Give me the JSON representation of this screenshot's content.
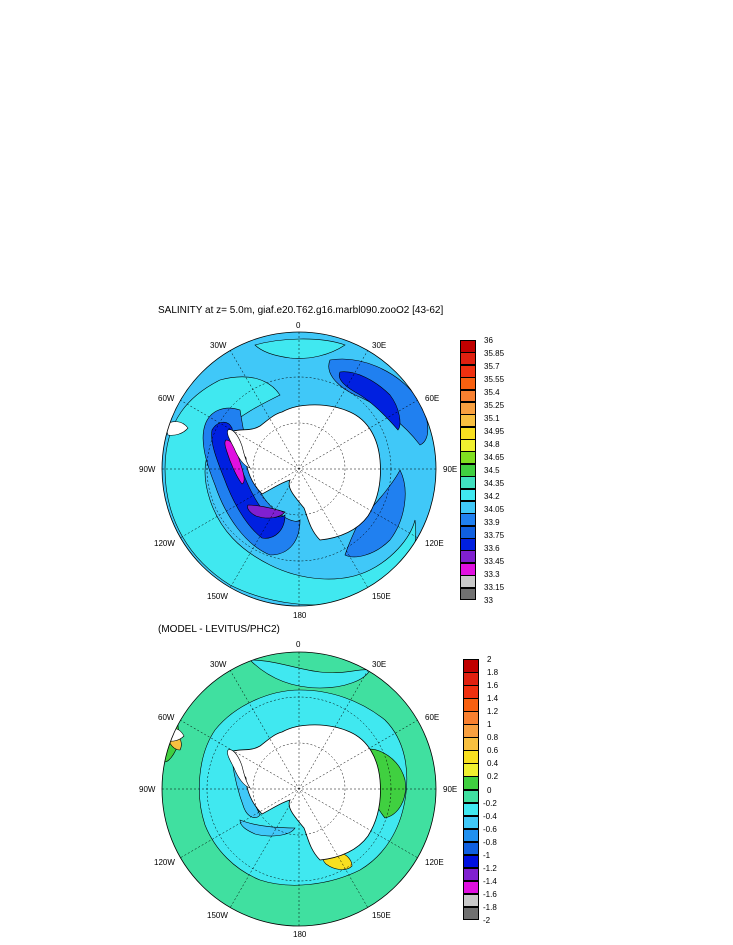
{
  "panels": [
    {
      "title": "SALINITY at z=   5.0m, giaf.e20.T62.g16.marbl090.zooO2 [43-62]",
      "lon_labels": {
        "top": "0",
        "tl": "30W",
        "tr": "30E",
        "ml": "60W",
        "mr": "60E",
        "l": "90W",
        "r": "90E",
        "bl": "120W",
        "br": "120E",
        "bbl": "150W",
        "bbr": "150E",
        "bottom": "180"
      },
      "colorbar": {
        "labels": [
          "36",
          "35.85",
          "35.7",
          "35.55",
          "35.4",
          "35.25",
          "35.1",
          "34.95",
          "34.8",
          "34.65",
          "34.5",
          "34.35",
          "34.2",
          "34.05",
          "33.9",
          "33.75",
          "33.6",
          "33.45",
          "33.3",
          "33.15",
          "33"
        ],
        "colors": [
          "#c00000",
          "#e02010",
          "#f03010",
          "#f86010",
          "#f88030",
          "#f8a040",
          "#f8c040",
          "#f8e020",
          "#f0f030",
          "#80e020",
          "#40d040",
          "#40e0c0",
          "#40e8f0",
          "#40c8f8",
          "#2080f0",
          "#1060e0",
          "#0020e0",
          "#8020d0",
          "#e010e0",
          "#c8c8c8",
          "#707070"
        ]
      }
    },
    {
      "title": "(MODEL - LEVITUS/PHC2)",
      "lon_labels": {
        "top": "0",
        "tl": "30W",
        "tr": "30E",
        "ml": "60W",
        "mr": "60E",
        "l": "90W",
        "r": "90E",
        "bl": "120W",
        "br": "120E",
        "bbl": "150W",
        "bbr": "150E",
        "bottom": "180"
      },
      "colorbar": {
        "labels": [
          "2",
          "1.8",
          "1.6",
          "1.4",
          "1.2",
          "1",
          "0.8",
          "0.6",
          "0.4",
          "0.2",
          "0",
          "-0.2",
          "-0.4",
          "-0.6",
          "-0.8",
          "-1",
          "-1.2",
          "-1.4",
          "-1.6",
          "-1.8",
          "-2"
        ],
        "colors": [
          "#c00000",
          "#e02010",
          "#f03010",
          "#f86010",
          "#f88030",
          "#f8a040",
          "#f8c040",
          "#f8e020",
          "#f0f030",
          "#40d040",
          "#40e0a0",
          "#40e8f0",
          "#40c8f8",
          "#2090f0",
          "#1060e0",
          "#0010e0",
          "#8020d0",
          "#e010e0",
          "#c8c8c8",
          "#707070"
        ]
      }
    }
  ]
}
